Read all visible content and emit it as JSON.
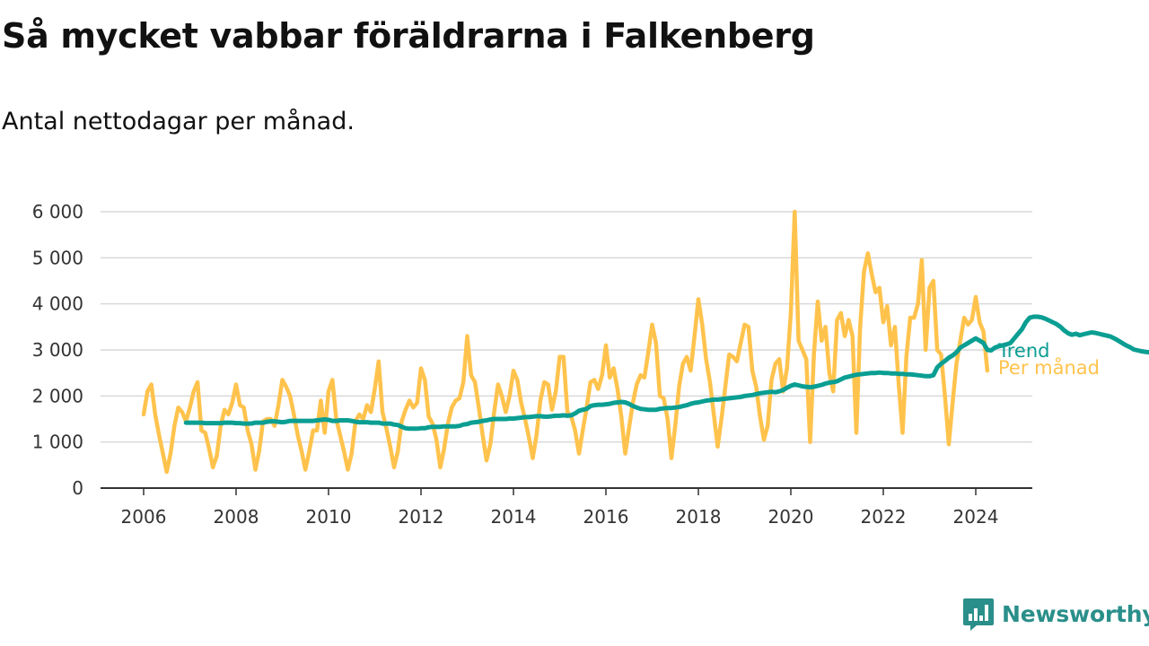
{
  "title": "Så mycket vabbar föräldrarna i Falkenberg",
  "subtitle": "Antal nettodagar per månad.",
  "brand": {
    "name": "Newsworthy",
    "color": "#2a8f8a"
  },
  "colors": {
    "monthly": "#ffc34d",
    "trend": "#0b9e92",
    "grid": "#d9d9d9",
    "axis": "#333333"
  },
  "chart_data": {
    "type": "line",
    "title": "",
    "xlabel": "",
    "ylabel": "",
    "xlim": [
      2006,
      2024.6
    ],
    "ylim": [
      0,
      6000
    ],
    "yticks": [
      0,
      1000,
      2000,
      3000,
      4000,
      5000,
      6000
    ],
    "ytick_labels": [
      "0",
      "1 000",
      "2 000",
      "3 000",
      "4 000",
      "5 000",
      "6 000"
    ],
    "xticks": [
      2006,
      2008,
      2010,
      2012,
      2014,
      2016,
      2018,
      2020,
      2022,
      2024
    ],
    "xtick_labels": [
      "2006",
      "2008",
      "2010",
      "2012",
      "2014",
      "2016",
      "2018",
      "2020",
      "2022",
      "2024"
    ],
    "grid": "horizontal",
    "legend": "end-of-line labels",
    "series": [
      {
        "name": "Per månad",
        "x_start": 2006.0,
        "x_step": 0.083333,
        "values": [
          1600,
          2100,
          2250,
          1600,
          1150,
          750,
          350,
          750,
          1350,
          1750,
          1650,
          1450,
          1750,
          2100,
          2300,
          1250,
          1200,
          850,
          450,
          700,
          1350,
          1700,
          1600,
          1850,
          2250,
          1800,
          1750,
          1250,
          950,
          400,
          800,
          1450,
          1500,
          1500,
          1350,
          1800,
          2350,
          2200,
          2000,
          1600,
          1150,
          800,
          400,
          800,
          1250,
          1250,
          1900,
          1200,
          2100,
          2350,
          1500,
          1150,
          800,
          400,
          750,
          1450,
          1600,
          1500,
          1800,
          1650,
          2150,
          2750,
          1650,
          1300,
          900,
          450,
          800,
          1450,
          1700,
          1900,
          1750,
          1850,
          2600,
          2350,
          1550,
          1400,
          1050,
          450,
          850,
          1400,
          1750,
          1900,
          1950,
          2300,
          3300,
          2450,
          2300,
          1750,
          1150,
          600,
          950,
          1650,
          2250,
          2000,
          1650,
          2000,
          2550,
          2350,
          1850,
          1500,
          1100,
          650,
          1150,
          1900,
          2300,
          2250,
          1700,
          2100,
          2850,
          2850,
          1650,
          1550,
          1250,
          750,
          1250,
          1750,
          2300,
          2350,
          2150,
          2450,
          3100,
          2400,
          2600,
          2150,
          1550,
          750,
          1300,
          1850,
          2250,
          2450,
          2400,
          2950,
          3550,
          3150,
          2000,
          1950,
          1500,
          650,
          1350,
          2200,
          2700,
          2850,
          2550,
          3300,
          4100,
          3550,
          2800,
          2300,
          1600,
          900,
          1500,
          2200,
          2900,
          2850,
          2750,
          3150,
          3550,
          3500,
          2550,
          2200,
          1550,
          1050,
          1350,
          2350,
          2700,
          2800,
          2100,
          2600,
          3800,
          6000,
          3200,
          3000,
          2800,
          1000,
          2900,
          4050,
          3200,
          3500,
          2500,
          2100,
          3650,
          3800,
          3300,
          3650,
          3300,
          1200,
          3500,
          4700,
          5100,
          4650,
          4250,
          4350,
          3600,
          3950,
          3100,
          3500,
          2250,
          1200,
          2850,
          3700,
          3700,
          4000,
          4950,
          3000,
          4350,
          4500,
          3000,
          2900,
          2000,
          950,
          1850,
          2700,
          3200,
          3700,
          3550,
          3650,
          4150,
          3600,
          3400,
          2550
        ]
      },
      {
        "name": "Trend",
        "x_start": 2006.917,
        "x_step": 0.083333,
        "values": [
          1420,
          1420,
          1420,
          1420,
          1420,
          1410,
          1410,
          1410,
          1410,
          1410,
          1420,
          1420,
          1420,
          1410,
          1410,
          1400,
          1400,
          1400,
          1420,
          1420,
          1420,
          1440,
          1450,
          1450,
          1440,
          1430,
          1440,
          1460,
          1460,
          1460,
          1460,
          1460,
          1460,
          1460,
          1470,
          1480,
          1490,
          1480,
          1460,
          1460,
          1470,
          1470,
          1470,
          1460,
          1440,
          1430,
          1430,
          1430,
          1420,
          1420,
          1420,
          1400,
          1400,
          1400,
          1380,
          1370,
          1330,
          1300,
          1290,
          1290,
          1290,
          1300,
          1300,
          1320,
          1330,
          1330,
          1330,
          1340,
          1340,
          1340,
          1340,
          1350,
          1380,
          1390,
          1420,
          1430,
          1440,
          1460,
          1470,
          1490,
          1500,
          1500,
          1500,
          1500,
          1510,
          1510,
          1520,
          1530,
          1540,
          1540,
          1550,
          1560,
          1560,
          1550,
          1550,
          1560,
          1570,
          1570,
          1580,
          1570,
          1580,
          1620,
          1680,
          1700,
          1720,
          1780,
          1800,
          1810,
          1810,
          1820,
          1830,
          1850,
          1860,
          1870,
          1860,
          1830,
          1780,
          1750,
          1720,
          1710,
          1700,
          1700,
          1700,
          1720,
          1730,
          1740,
          1740,
          1750,
          1760,
          1780,
          1800,
          1830,
          1850,
          1860,
          1880,
          1900,
          1910,
          1920,
          1920,
          1930,
          1940,
          1950,
          1960,
          1970,
          1980,
          2000,
          2010,
          2020,
          2040,
          2060,
          2070,
          2080,
          2090,
          2080,
          2100,
          2130,
          2180,
          2220,
          2250,
          2230,
          2210,
          2200,
          2190,
          2200,
          2220,
          2240,
          2270,
          2290,
          2300,
          2320,
          2360,
          2400,
          2420,
          2440,
          2460,
          2470,
          2480,
          2490,
          2500,
          2500,
          2510,
          2500,
          2500,
          2490,
          2490,
          2480,
          2480,
          2470,
          2470,
          2460,
          2450,
          2440,
          2430,
          2430,
          2450,
          2620,
          2700,
          2760,
          2830,
          2880,
          2950,
          3050,
          3100,
          3150,
          3200,
          3250,
          3200,
          3150,
          3000,
          2990,
          3050,
          3080,
          3100,
          3120,
          3150,
          3250,
          3350,
          3450,
          3600,
          3700,
          3720,
          3720,
          3710,
          3680,
          3640,
          3600,
          3560,
          3500,
          3420,
          3360,
          3330,
          3350,
          3320,
          3340,
          3360,
          3380,
          3370,
          3350,
          3330,
          3310,
          3290,
          3250,
          3200,
          3150,
          3100,
          3060,
          3010,
          2990,
          2970,
          2960,
          2950,
          2940,
          2920
        ]
      }
    ]
  }
}
